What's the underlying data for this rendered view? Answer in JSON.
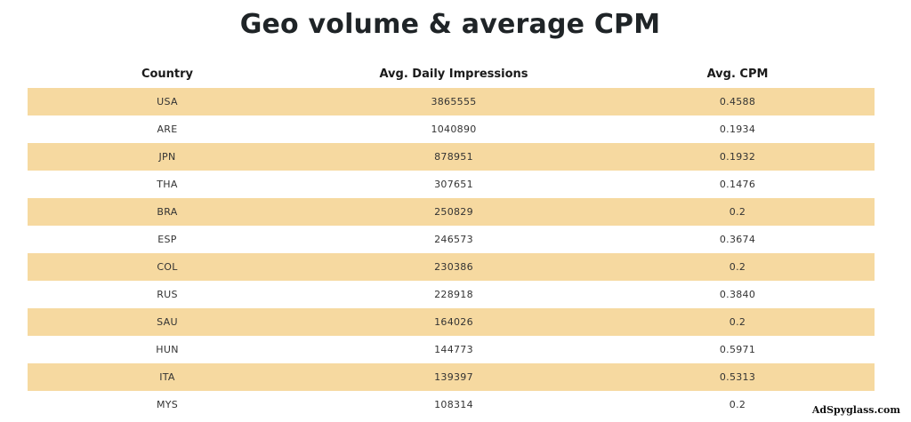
{
  "title": "Geo volume & average CPM",
  "table": {
    "headers": [
      "Country",
      "Avg. Daily Impressions",
      "Avg. CPM"
    ],
    "rows": [
      [
        "USA",
        "3865555",
        "0.4588"
      ],
      [
        "ARE",
        "1040890",
        "0.1934"
      ],
      [
        "JPN",
        "878951",
        "0.1932"
      ],
      [
        "THA",
        "307651",
        "0.1476"
      ],
      [
        "BRA",
        "250829",
        "0.2"
      ],
      [
        "ESP",
        "246573",
        "0.3674"
      ],
      [
        "COL",
        "230386",
        "0.2"
      ],
      [
        "RUS",
        "228918",
        "0.3840"
      ],
      [
        "SAU",
        "164026",
        "0.2"
      ],
      [
        "HUN",
        "144773",
        "0.5971"
      ],
      [
        "ITA",
        "139397",
        "0.5313"
      ],
      [
        "MYS",
        "108314",
        "0.2"
      ]
    ]
  },
  "watermark": "AdSpyglass.com",
  "colors": {
    "stripe": "#f6d9a0",
    "text": "#1e2326"
  }
}
